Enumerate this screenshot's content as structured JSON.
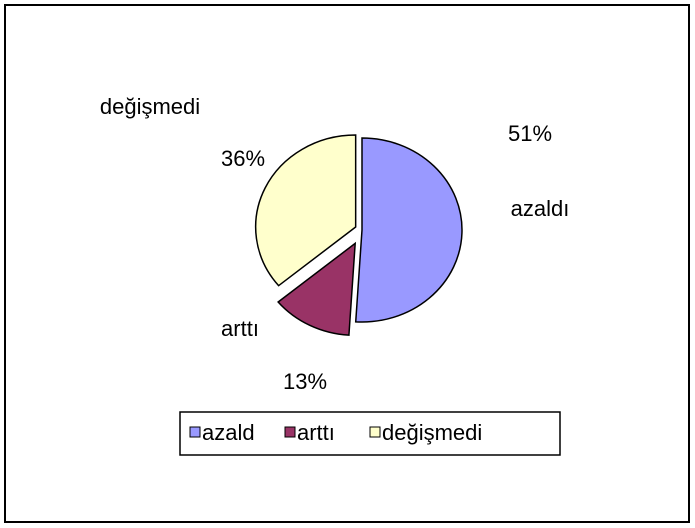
{
  "chart_data": {
    "type": "pie",
    "categories": [
      "azaldı",
      "arttı",
      "değişmedi"
    ],
    "values": [
      51,
      13,
      36
    ],
    "value_labels": [
      "51%",
      "13%",
      "36%"
    ],
    "colors": [
      "#9999ff",
      "#993366",
      "#ffffcc"
    ],
    "legend_labels": [
      "azald",
      "arttı",
      "değişmedi"
    ],
    "legend": "bottom"
  }
}
